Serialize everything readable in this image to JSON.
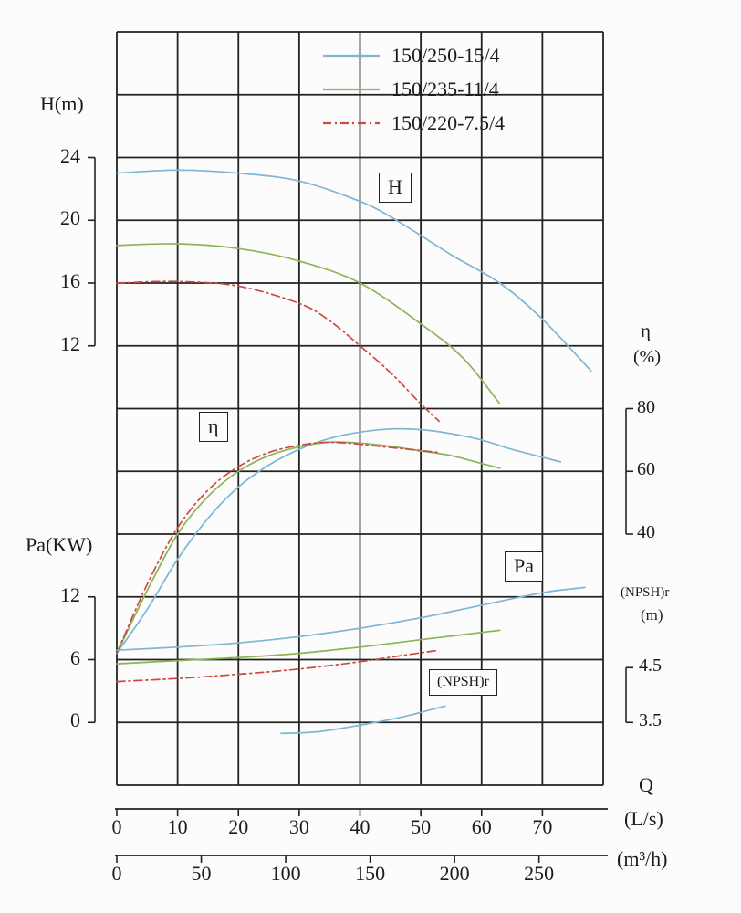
{
  "chart_data": {
    "type": "line",
    "grid": true,
    "legend_position": "top-center-inside",
    "legend": [
      {
        "label": "150/250-15/4",
        "color": "#7fb5d5",
        "dash": "solid"
      },
      {
        "label": "150/235-11/4",
        "color": "#8cb455",
        "dash": "solid"
      },
      {
        "label": "150/220-7.5/4",
        "color": "#cc4a44",
        "dash": "dashdot"
      }
    ],
    "curve_labels": {
      "h": "H",
      "eta": "η",
      "pa": "Pa",
      "npsh": "(NPSH)r"
    },
    "axes": {
      "x_title": "Q",
      "x_ls": {
        "label": "(L/s)",
        "ticks": [
          0,
          10,
          20,
          30,
          40,
          50,
          60,
          70
        ],
        "range": [
          0,
          80
        ]
      },
      "x_m3h": {
        "label": "(m³/h)",
        "ticks": [
          0,
          50,
          100,
          150,
          200,
          250
        ]
      },
      "h": {
        "label": "H(m)",
        "ticks": [
          24,
          20,
          16,
          12
        ]
      },
      "pa": {
        "label": "Pa(KW)",
        "ticks": [
          12,
          6,
          0
        ]
      },
      "eta": {
        "label": "η",
        "unit": "(%)",
        "ticks": [
          80,
          60,
          40
        ]
      },
      "npsh": {
        "label": "(NPSH)r",
        "unit": "(m)",
        "ticks": [
          4.5,
          3.5
        ]
      }
    },
    "series": {
      "H": [
        {
          "model": "150/250-15/4",
          "points": [
            [
              0,
              23.0
            ],
            [
              10,
              23.2
            ],
            [
              20,
              23.0
            ],
            [
              30,
              22.5
            ],
            [
              40,
              21.2
            ],
            [
              46,
              20.0
            ],
            [
              55,
              17.8
            ],
            [
              63,
              16.0
            ],
            [
              70,
              13.7
            ],
            [
              78,
              10.4
            ]
          ]
        },
        {
          "model": "150/235-11/4",
          "points": [
            [
              0,
              18.4
            ],
            [
              10,
              18.5
            ],
            [
              20,
              18.2
            ],
            [
              30,
              17.4
            ],
            [
              40,
              16.0
            ],
            [
              50,
              13.4
            ],
            [
              57,
              11.2
            ],
            [
              63,
              8.3
            ]
          ]
        },
        {
          "model": "150/220-7.5/4",
          "points": [
            [
              0,
              16.0
            ],
            [
              10,
              16.1
            ],
            [
              20,
              15.8
            ],
            [
              30,
              14.7
            ],
            [
              35,
              13.6
            ],
            [
              40,
              12.0
            ],
            [
              45,
              10.3
            ],
            [
              50,
              8.3
            ],
            [
              53,
              7.2
            ]
          ]
        }
      ],
      "eta": [
        {
          "model": "150/250-15/4",
          "points": [
            [
              0,
              2
            ],
            [
              5,
              16
            ],
            [
              10,
              32
            ],
            [
              15,
              45
            ],
            [
              20,
              55
            ],
            [
              25,
              62
            ],
            [
              30,
              67
            ],
            [
              35,
              70.5
            ],
            [
              40,
              72.5
            ],
            [
              45,
              73.5
            ],
            [
              50,
              73.3
            ],
            [
              55,
              72
            ],
            [
              60,
              70
            ],
            [
              65,
              67
            ],
            [
              73,
              63
            ]
          ]
        },
        {
          "model": "150/235-11/4",
          "points": [
            [
              0,
              2
            ],
            [
              5,
              22
            ],
            [
              10,
              40
            ],
            [
              15,
              52
            ],
            [
              20,
              60
            ],
            [
              25,
              65
            ],
            [
              30,
              67.8
            ],
            [
              35,
              69.3
            ],
            [
              40,
              69
            ],
            [
              45,
              68
            ],
            [
              50,
              66.5
            ],
            [
              55,
              65
            ],
            [
              60,
              62.5
            ],
            [
              63,
              61
            ]
          ]
        },
        {
          "model": "150/220-7.5/4",
          "points": [
            [
              0,
              2
            ],
            [
              5,
              24
            ],
            [
              10,
              42
            ],
            [
              15,
              54
            ],
            [
              20,
              61.5
            ],
            [
              25,
              66
            ],
            [
              30,
              68.3
            ],
            [
              34,
              69.2
            ],
            [
              38,
              69
            ],
            [
              43,
              68
            ],
            [
              48,
              67
            ],
            [
              53,
              66
            ]
          ]
        }
      ],
      "Pa": [
        {
          "model": "150/250-15/4",
          "points": [
            [
              0,
              6.9
            ],
            [
              10,
              7.2
            ],
            [
              20,
              7.6
            ],
            [
              30,
              8.2
            ],
            [
              40,
              9.0
            ],
            [
              50,
              10.0
            ],
            [
              60,
              11.2
            ],
            [
              70,
              12.4
            ],
            [
              77,
              12.9
            ]
          ]
        },
        {
          "model": "150/235-11/4",
          "points": [
            [
              0,
              5.6
            ],
            [
              10,
              5.9
            ],
            [
              20,
              6.2
            ],
            [
              30,
              6.6
            ],
            [
              40,
              7.2
            ],
            [
              50,
              7.9
            ],
            [
              60,
              8.6
            ],
            [
              63,
              8.8
            ]
          ]
        },
        {
          "model": "150/220-7.5/4",
          "points": [
            [
              0,
              3.9
            ],
            [
              10,
              4.2
            ],
            [
              20,
              4.6
            ],
            [
              30,
              5.1
            ],
            [
              40,
              5.8
            ],
            [
              47,
              6.4
            ],
            [
              53,
              6.9
            ]
          ]
        }
      ],
      "npsh": [
        {
          "model": "150/250-15/4",
          "points": [
            [
              27,
              3.3
            ],
            [
              33,
              3.33
            ],
            [
              40,
              3.45
            ],
            [
              47,
              3.6
            ],
            [
              54,
              3.8
            ]
          ]
        }
      ]
    }
  }
}
